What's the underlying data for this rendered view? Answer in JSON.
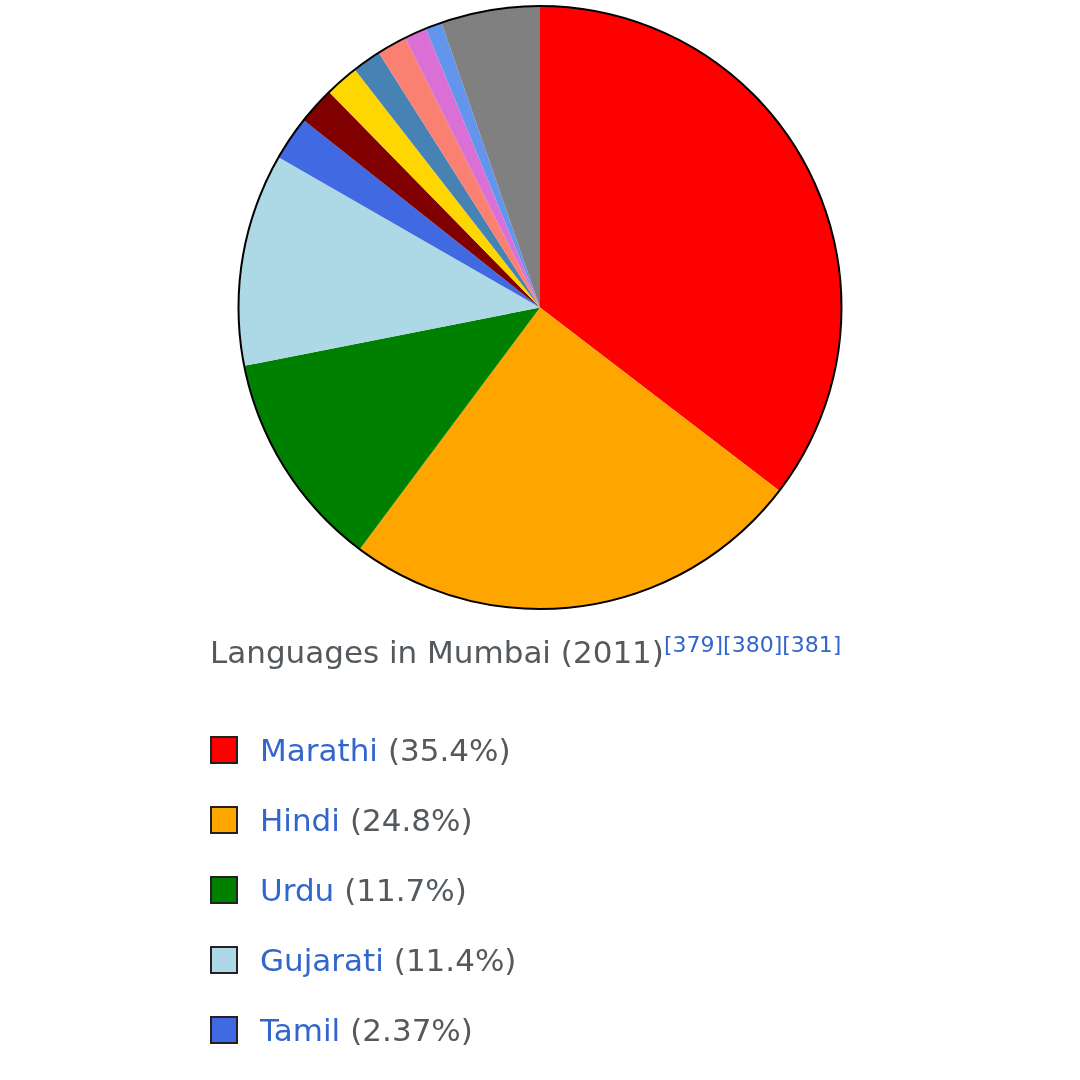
{
  "chart_data": {
    "type": "pie",
    "title": "Languages in Mumbai (2011)$^{[379][380][381]}$",
    "categories": [
      "Marathi",
      "Hindi",
      "Urdu",
      "Gujarati",
      "Tamil",
      null,
      null,
      null,
      null,
      null,
      null,
      null
    ],
    "values": [
      35.4,
      24.8,
      11.7,
      11.4,
      2.37,
      2.0,
      1.8,
      1.55,
      1.6,
      1.2,
      0.88,
      5.3
    ],
    "value_labels": [
      "(35.4%)",
      "(24.8%)",
      "(11.7%)",
      "(11.4%)",
      "(2.37%)",
      null,
      null,
      null,
      null,
      null,
      null,
      null
    ],
    "colors": [
      "#ff0000",
      "#ffa500",
      "#008000",
      "#add8e6",
      "#4169e1",
      "#800000",
      "#ffd700",
      "#4682b4",
      "#fa8072",
      "#da70d6",
      "#6495ed",
      "#808080"
    ],
    "legend": "bottom"
  }
}
